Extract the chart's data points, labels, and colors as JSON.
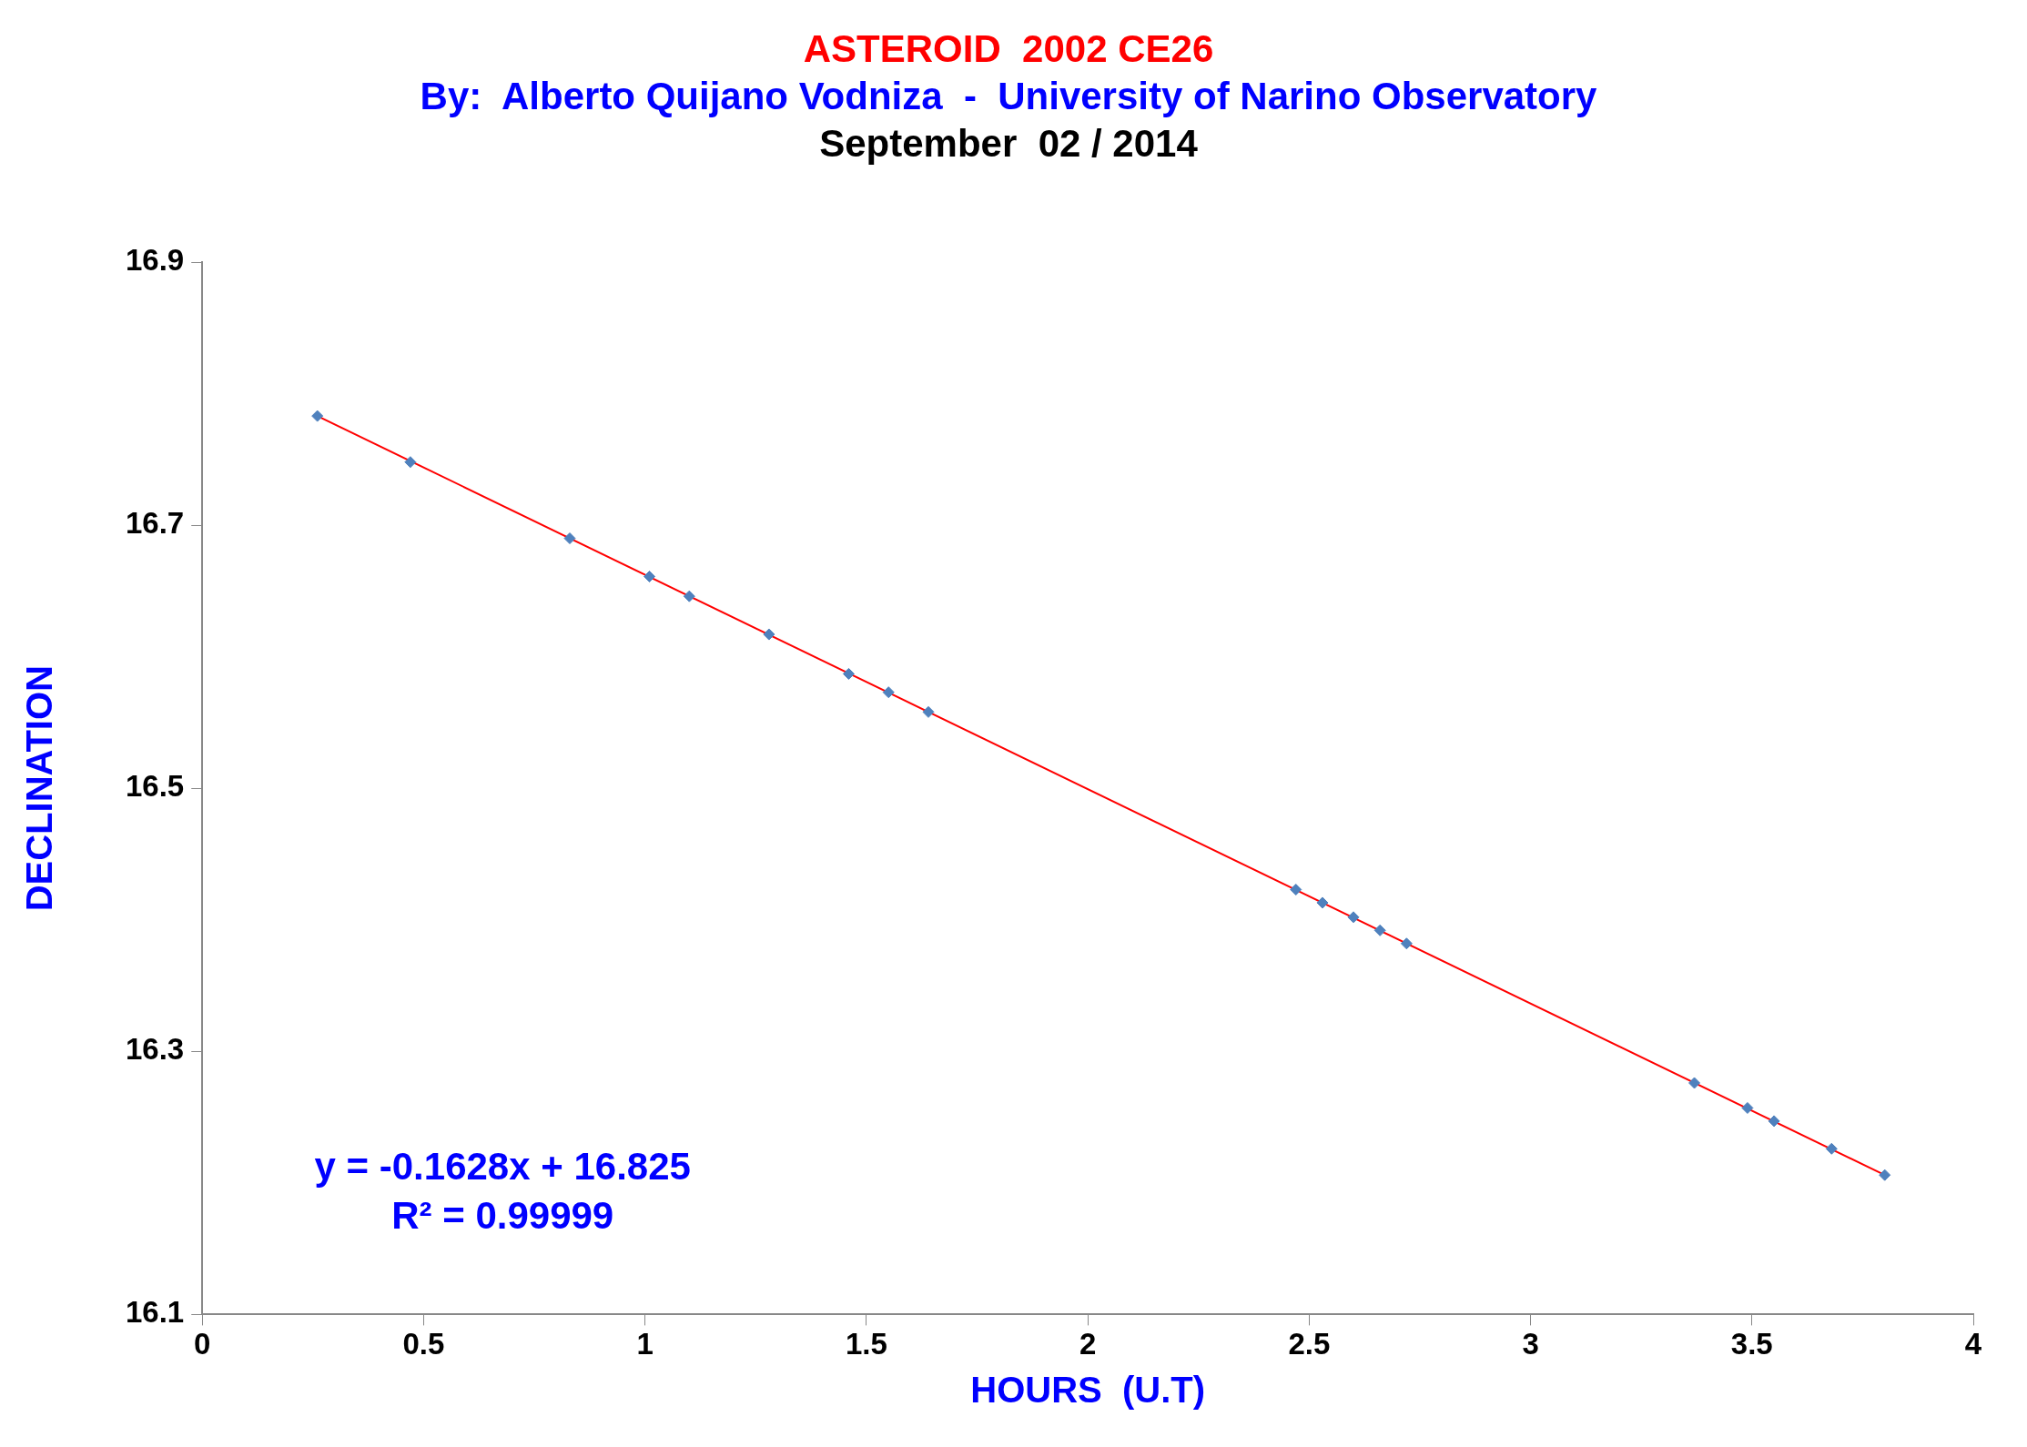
{
  "chart_data": {
    "type": "scatter",
    "title": "ASTEROID  2002 CE26",
    "subtitle": "By:  Alberto Quijano Vodniza  -  University of Narino Observatory",
    "xlabel": "HOURS  (U.T)",
    "ylabel": "DECLINATION",
    "annotations": [
      "September  02 / 2014",
      "y = -0.1628x + 16.825",
      "R² = 0.99999"
    ],
    "xlim": [
      0,
      4
    ],
    "xticks": [
      0,
      0.5,
      1,
      1.5,
      2,
      2.5,
      3,
      3.5,
      4
    ],
    "ylim": [
      16.1,
      16.9
    ],
    "yticks": [
      16.1,
      16.3,
      16.5,
      16.7,
      16.9
    ],
    "grid": false,
    "series": [
      {
        "type": "scatter",
        "color": "#4f81bd",
        "marker": "diamond",
        "x": [
          0.26,
          0.47,
          0.83,
          1.01,
          1.1,
          1.28,
          1.46,
          1.55,
          1.64,
          2.47,
          2.53,
          2.6,
          2.66,
          2.72,
          3.37,
          3.49,
          3.55,
          3.68,
          3.8
        ],
        "values": [
          16.783,
          16.748,
          16.69,
          16.661,
          16.646,
          16.617,
          16.587,
          16.573,
          16.558,
          16.423,
          16.413,
          16.402,
          16.392,
          16.382,
          16.276,
          16.257,
          16.247,
          16.226,
          16.206
        ]
      },
      {
        "type": "line",
        "color": "#ff0000",
        "marker": "none",
        "line_style": "solid",
        "x": [
          0.26,
          3.8
        ],
        "values": [
          16.783,
          16.206
        ]
      }
    ]
  }
}
